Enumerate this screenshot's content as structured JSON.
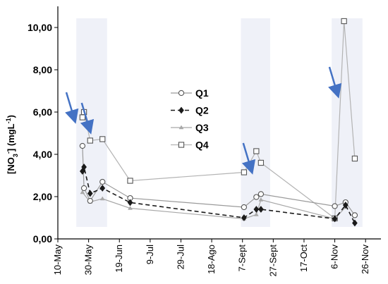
{
  "chart_data": {
    "type": "line",
    "ylabel": "[NO3-] (mgL-1)",
    "ylabel_parts": {
      "main": "[NO",
      "sub": "3",
      "sup1": "-",
      "rest": "] (mgL",
      "sup2": "-1",
      "close": ")"
    },
    "ylim": [
      0,
      11
    ],
    "yticks": [
      "0,00",
      "2,00",
      "4,00",
      "6,00",
      "8,00",
      "10,00"
    ],
    "ytick_values": [
      0,
      2,
      4,
      6,
      8,
      10
    ],
    "xlim": [
      "2019-05-10",
      "2019-12-06"
    ],
    "xticks": [
      "10-May",
      "30-May",
      "19-Jun",
      "9-Jul",
      "29-Jul",
      "18-Ago",
      "7-Sept",
      "27-Sept",
      "17-Oct",
      "6-Nov",
      "26-Nov"
    ],
    "xtick_dates": [
      "2019-05-10",
      "2019-05-30",
      "2019-06-19",
      "2019-07-09",
      "2019-07-29",
      "2019-08-18",
      "2019-09-07",
      "2019-09-27",
      "2019-10-17",
      "2019-11-06",
      "2019-11-26"
    ],
    "grid": false,
    "legend_position": "center",
    "highlight_bands": [
      {
        "from": "2019-05-22",
        "to": "2019-06-11"
      },
      {
        "from": "2019-09-06",
        "to": "2019-09-25"
      },
      {
        "from": "2019-11-04",
        "to": "2019-11-24"
      }
    ],
    "arrows": [
      {
        "date": "2019-05-21",
        "value": 5.6
      },
      {
        "date": "2019-05-31",
        "value": 5.1
      },
      {
        "date": "2019-09-13",
        "value": 3.2
      },
      {
        "date": "2019-11-08",
        "value": 6.8
      }
    ],
    "series": [
      {
        "name": "Q1",
        "color": "#9a9a9a",
        "dash": "solid",
        "marker": "circle",
        "points": [
          {
            "x": "2019-05-26",
            "y": 4.4
          },
          {
            "x": "2019-05-27",
            "y": 2.4
          },
          {
            "x": "2019-05-31",
            "y": 1.8
          },
          {
            "x": "2019-06-08",
            "y": 2.7
          },
          {
            "x": "2019-06-26",
            "y": 1.93
          },
          {
            "x": "2019-09-08",
            "y": 1.5
          },
          {
            "x": "2019-09-16",
            "y": 1.98
          },
          {
            "x": "2019-09-19",
            "y": 2.12
          },
          {
            "x": "2019-11-06",
            "y": 1.55
          },
          {
            "x": "2019-11-13",
            "y": 1.73
          },
          {
            "x": "2019-11-19",
            "y": 1.12
          }
        ]
      },
      {
        "name": "Q2",
        "color": "#1a1a1a",
        "dash": "dashed",
        "marker": "diamond",
        "points": [
          {
            "x": "2019-05-26",
            "y": 3.2
          },
          {
            "x": "2019-05-27",
            "y": 3.4
          },
          {
            "x": "2019-05-31",
            "y": 2.15
          },
          {
            "x": "2019-06-08",
            "y": 2.4
          },
          {
            "x": "2019-06-26",
            "y": 1.72
          },
          {
            "x": "2019-09-08",
            "y": 1.0
          },
          {
            "x": "2019-09-16",
            "y": 1.4
          },
          {
            "x": "2019-09-19",
            "y": 1.4
          },
          {
            "x": "2019-11-06",
            "y": 0.95
          },
          {
            "x": "2019-11-13",
            "y": 1.6
          },
          {
            "x": "2019-11-19",
            "y": 0.75
          }
        ]
      },
      {
        "name": "Q3",
        "color": "#a8a8a8",
        "dash": "solid",
        "marker": "triangle",
        "points": [
          {
            "x": "2019-05-26",
            "y": 2.2
          },
          {
            "x": "2019-05-31",
            "y": 1.75
          },
          {
            "x": "2019-06-08",
            "y": 1.9
          },
          {
            "x": "2019-06-26",
            "y": 1.45
          },
          {
            "x": "2019-09-08",
            "y": 0.95
          },
          {
            "x": "2019-09-16",
            "y": 1.15
          },
          {
            "x": "2019-09-19",
            "y": 1.85
          },
          {
            "x": "2019-11-06",
            "y": 0.95
          },
          {
            "x": "2019-11-13",
            "y": 1.5
          }
        ]
      },
      {
        "name": "Q4",
        "color": "#b3b3b3",
        "dash": "solid",
        "marker": "square",
        "points": [
          {
            "x": "2019-05-26",
            "y": 5.75
          },
          {
            "x": "2019-05-27",
            "y": 6.0
          },
          {
            "x": "2019-05-31",
            "y": 4.65
          },
          {
            "x": "2019-06-08",
            "y": 4.72
          },
          {
            "x": "2019-06-26",
            "y": 2.75
          },
          {
            "x": "2019-09-08",
            "y": 3.15
          },
          {
            "x": "2019-09-16",
            "y": 4.15
          },
          {
            "x": "2019-09-19",
            "y": 3.6
          },
          {
            "x": "2019-11-06",
            "y": 0.97
          },
          {
            "x": "2019-11-12",
            "y": 10.3
          },
          {
            "x": "2019-11-19",
            "y": 3.8
          }
        ]
      }
    ]
  }
}
